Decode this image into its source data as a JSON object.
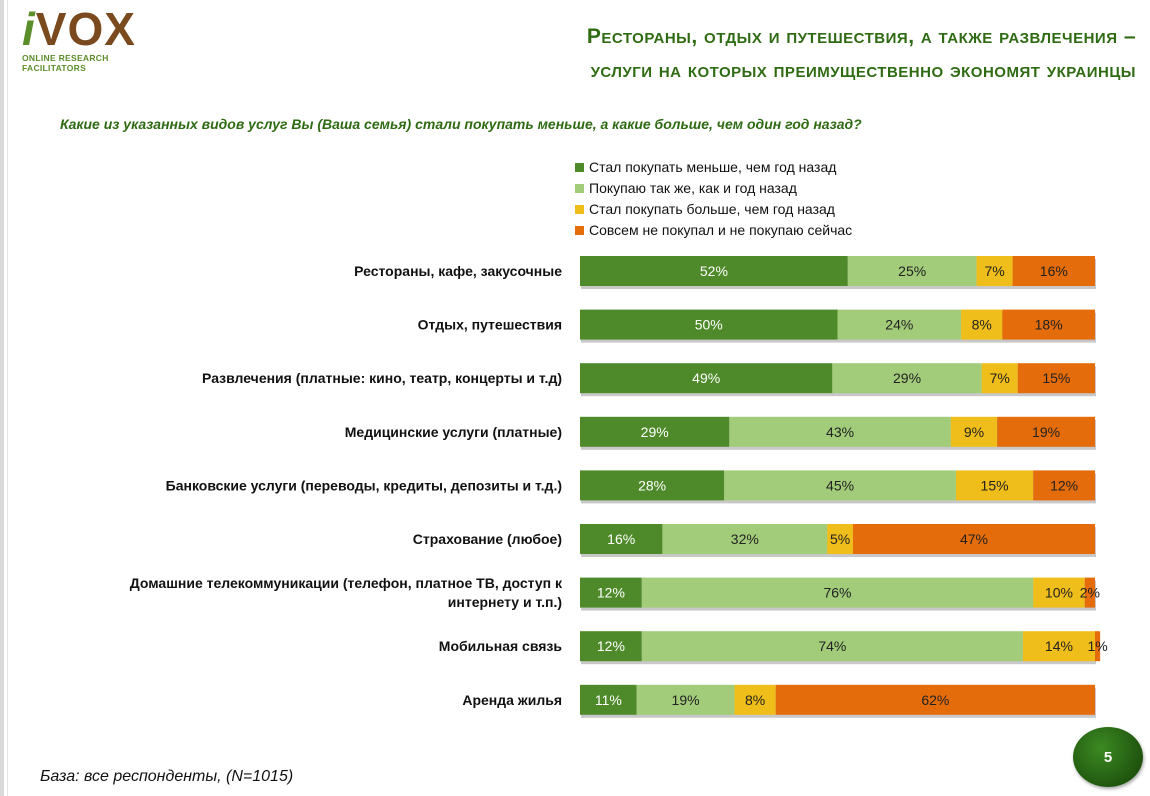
{
  "logo": {
    "i": "i",
    "vox": "VOX",
    "subtitle": "ONLINE RESEARCH FACILITATORS"
  },
  "title": {
    "line1": "Рестораны, отдых и путешествия, а также развлечения –",
    "line2": "услуги на которых преимущественно экономят украинцы"
  },
  "question": "Какие из указанных видов услуг Вы (Ваша семья) стали покупать меньше, а какие больше, чем один год назад?",
  "base_note": "База: все респонденты, (N=1015)",
  "page_number": "5",
  "colors": {
    "less": "#4f8a2a",
    "same": "#a2cc7a",
    "more": "#f0be1a",
    "never": "#e46c0a"
  },
  "chart_data": {
    "type": "bar",
    "orientation": "horizontal",
    "stacked": true,
    "legend_position": "top-right",
    "categories": [
      [
        "Рестораны, кафе, закусочные"
      ],
      [
        "Отдых, путешествия"
      ],
      [
        "Развлечения (платные: кино, театр, концерты и т.д)"
      ],
      [
        "Медицинские услуги (платные)"
      ],
      [
        "Банковские услуги (переводы, кредиты, депозиты и т.д.)"
      ],
      [
        "Страхование (любое)"
      ],
      [
        "Домашние телекоммуникации (телефон, платное ТВ, доступ к",
        "интернету и т.п.)"
      ],
      [
        "Мобильная связь"
      ],
      [
        "Аренда жилья"
      ]
    ],
    "series": [
      {
        "name": "Стал покупать меньше, чем год назад",
        "color": "#4f8a2a",
        "values": [
          52,
          50,
          49,
          29,
          28,
          16,
          12,
          12,
          11
        ]
      },
      {
        "name": "Покупаю так же, как и год назад",
        "color": "#a2cc7a",
        "values": [
          25,
          24,
          29,
          43,
          45,
          32,
          76,
          74,
          19
        ]
      },
      {
        "name": "Стал покупать больше, чем год назад",
        "color": "#f0be1a",
        "values": [
          7,
          8,
          7,
          9,
          15,
          5,
          10,
          14,
          8
        ]
      },
      {
        "name": "Совсем не покупал и не покупаю сейчас",
        "color": "#e46c0a",
        "values": [
          16,
          18,
          15,
          19,
          12,
          47,
          2,
          1,
          62
        ]
      }
    ],
    "value_suffix": "%",
    "xlim": [
      0,
      100
    ]
  }
}
